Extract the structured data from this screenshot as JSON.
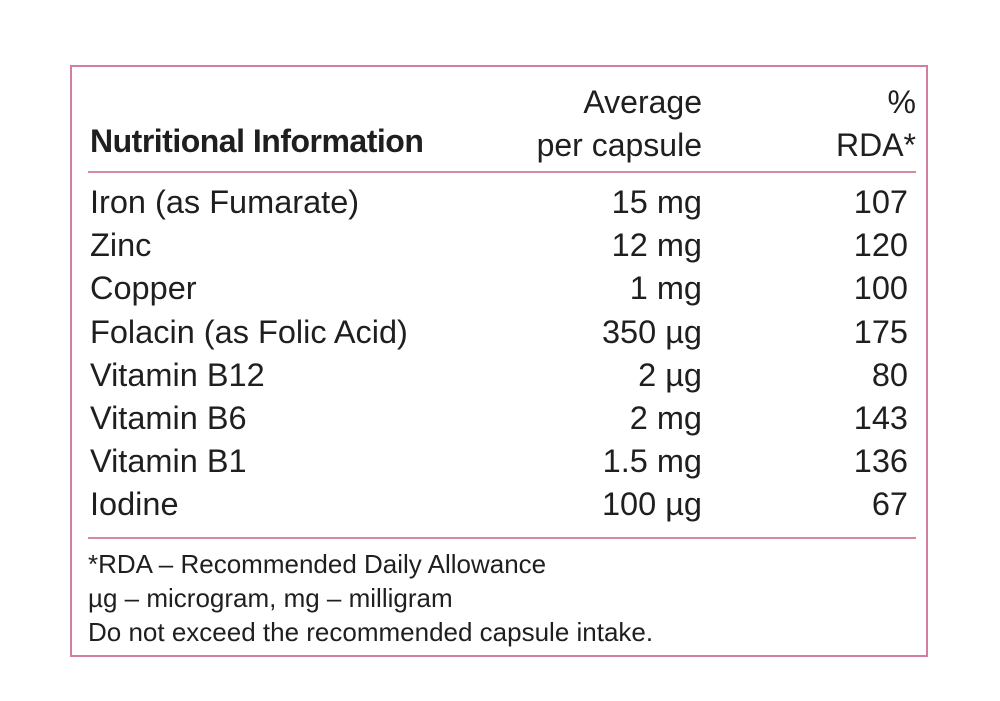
{
  "label": {
    "header": {
      "title": "Nutritional Information",
      "amount_line1": "Average",
      "amount_line2": "per capsule",
      "rda_line1": "%",
      "rda_line2": "RDA*"
    },
    "rows": [
      {
        "name": "Iron (as Fumarate)",
        "amount": "15 mg",
        "rda": "107"
      },
      {
        "name": "Zinc",
        "amount": "12 mg",
        "rda": "120"
      },
      {
        "name": "Copper",
        "amount": "1 mg",
        "rda": "100"
      },
      {
        "name": "Folacin (as Folic Acid)",
        "amount": "350 µg",
        "rda": "175"
      },
      {
        "name": "Vitamin B12",
        "amount": "2 µg",
        "rda": "80"
      },
      {
        "name": "Vitamin B6",
        "amount": "2 mg",
        "rda": "143"
      },
      {
        "name": "Vitamin B1",
        "amount": "1.5 mg",
        "rda": "136"
      },
      {
        "name": "Iodine",
        "amount": "100 µg",
        "rda": "67"
      }
    ],
    "footnotes": [
      "*RDA – Recommended Daily Allowance",
      "µg – microgram, mg – milligram",
      "Do not exceed the recommended capsule intake."
    ],
    "colors": {
      "border": "#d27ea2",
      "rule": "#d6899f",
      "text": "#1f1f1f"
    }
  }
}
